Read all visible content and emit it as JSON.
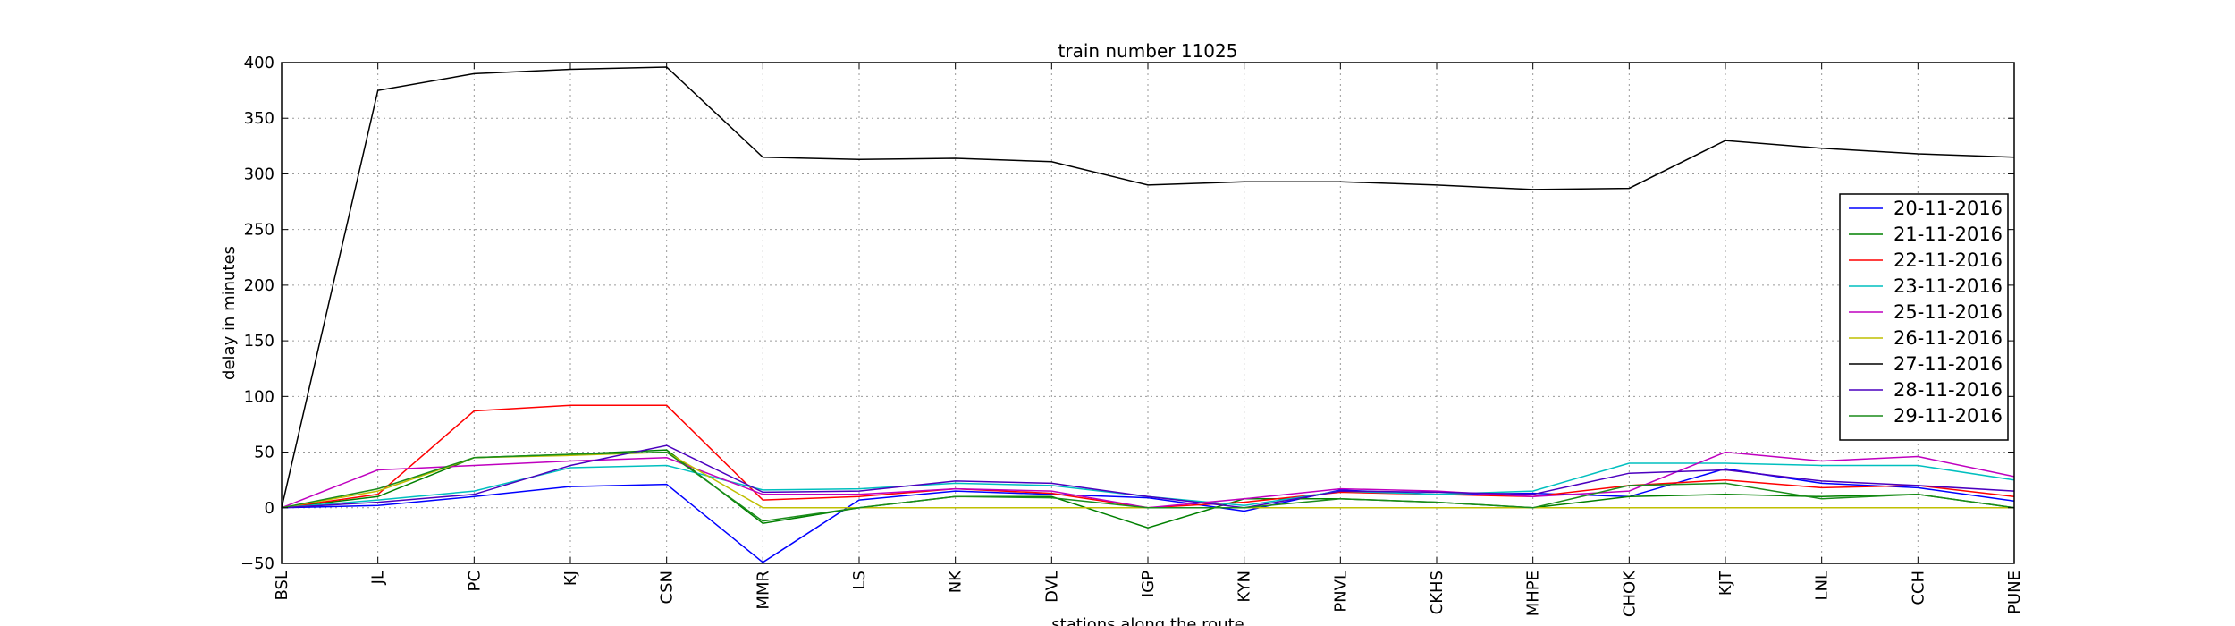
{
  "chart_data": {
    "type": "line",
    "title": "train number 11025",
    "xlabel": "stations along the route",
    "ylabel": "delay in minutes",
    "ylim": [
      -50,
      400
    ],
    "yticks": [
      -50,
      0,
      50,
      100,
      150,
      200,
      250,
      300,
      350,
      400
    ],
    "grid": true,
    "legend_position": "right",
    "categories": [
      "BSL",
      "JL",
      "PC",
      "KJ",
      "CSN",
      "MMR",
      "LS",
      "NK",
      "DVL",
      "IGP",
      "KYN",
      "PNVL",
      "CKHS",
      "MHPE",
      "CHOK",
      "KJT",
      "LNL",
      "CCH",
      "PUNE"
    ],
    "series": [
      {
        "name": "20-11-2016",
        "color": "#0000ff",
        "values": [
          0,
          2,
          10,
          19,
          21,
          -49,
          7,
          15,
          12,
          9,
          -3,
          16,
          12,
          13,
          10,
          35,
          22,
          18,
          6
        ]
      },
      {
        "name": "21-11-2016",
        "color": "#008000",
        "values": [
          0,
          10,
          45,
          48,
          52,
          -14,
          0,
          10,
          10,
          -18,
          8,
          8,
          5,
          0,
          10,
          12,
          10,
          12,
          0
        ]
      },
      {
        "name": "22-11-2016",
        "color": "#ff0000",
        "values": [
          0,
          12,
          87,
          92,
          92,
          7,
          10,
          17,
          13,
          0,
          5,
          14,
          12,
          10,
          20,
          25,
          18,
          20,
          10
        ]
      },
      {
        "name": "23-11-2016",
        "color": "#00bfbf",
        "values": [
          0,
          7,
          15,
          36,
          38,
          16,
          17,
          22,
          20,
          10,
          2,
          15,
          12,
          15,
          40,
          40,
          38,
          38,
          25
        ]
      },
      {
        "name": "25-11-2016",
        "color": "#bf00bf",
        "values": [
          0,
          34,
          38,
          42,
          45,
          12,
          12,
          17,
          15,
          0,
          8,
          17,
          15,
          10,
          15,
          50,
          42,
          46,
          28
        ]
      },
      {
        "name": "26-11-2016",
        "color": "#bfbf00",
        "values": [
          0,
          15,
          45,
          47,
          50,
          0,
          0,
          0,
          0,
          0,
          0,
          0,
          0,
          0,
          0,
          0,
          0,
          0,
          0
        ]
      },
      {
        "name": "27-11-2016",
        "color": "#000000",
        "values": [
          0,
          375,
          390,
          394,
          396,
          315,
          313,
          314,
          311,
          290,
          293,
          293,
          290,
          286,
          287,
          330,
          323,
          318,
          315
        ]
      },
      {
        "name": "28-11-2016",
        "color": "#4b00bf",
        "values": [
          0,
          5,
          12,
          38,
          56,
          14,
          15,
          24,
          22,
          10,
          0,
          15,
          14,
          12,
          31,
          34,
          24,
          20,
          15
        ]
      },
      {
        "name": "29-11-2016",
        "color": "#1a8c1a",
        "values": [
          0,
          17,
          45,
          48,
          50,
          -12,
          0,
          10,
          9,
          0,
          0,
          8,
          5,
          0,
          20,
          22,
          8,
          12,
          0
        ]
      }
    ]
  }
}
